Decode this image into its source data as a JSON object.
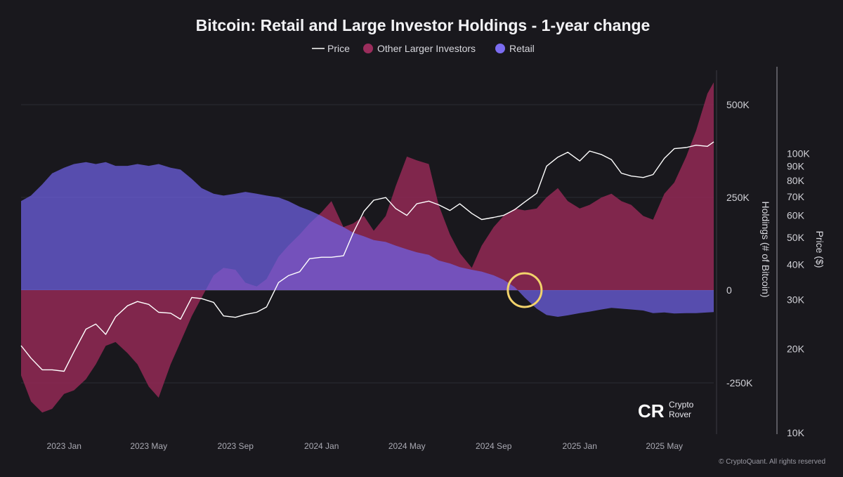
{
  "chart_data": {
    "type": "area",
    "title": "Bitcoin: Retail and Large Investor Holdings - 1-year change",
    "legend": [
      {
        "name": "Price",
        "color": "#ffffff",
        "marker": "line"
      },
      {
        "name": "Other Larger Investors",
        "color": "#9b2d5c",
        "marker": "dot"
      },
      {
        "name": "Retail",
        "color": "#7b6cf0",
        "marker": "dot"
      }
    ],
    "legend_position": "top-center",
    "y_left": {
      "label": "Holdings (# of Bitcoin)",
      "ticks": [
        500000,
        250000,
        0,
        -250000
      ],
      "tick_labels": [
        "500K",
        "250K",
        "0",
        "-250K"
      ],
      "range": [
        -390000,
        590000
      ]
    },
    "y_right": {
      "label": "Price ($)",
      "scale": "log",
      "ticks": [
        100000,
        90000,
        80000,
        70000,
        60000,
        50000,
        40000,
        30000,
        20000,
        10000
      ],
      "tick_labels": [
        "100K",
        "90K",
        "80K",
        "70K",
        "60K",
        "50K",
        "40K",
        "30K",
        "20K",
        "10K"
      ],
      "range": [
        10000,
        150000
      ]
    },
    "x_ticks": [
      "2023 Jan",
      "2023 May",
      "2023 Sep",
      "2024 Jan",
      "2024 May",
      "2024 Sep",
      "2025 Jan",
      "2025 May"
    ],
    "x_range": [
      "2022-11-01",
      "2025-07-10"
    ],
    "grid": "horizontal",
    "series": [
      {
        "name": "Retail",
        "color": "#6f63e6",
        "x": [
          "2022-11-01",
          "2022-11-15",
          "2022-12-01",
          "2022-12-15",
          "2023-01-01",
          "2023-01-15",
          "2023-02-01",
          "2023-02-15",
          "2023-03-01",
          "2023-03-15",
          "2023-04-01",
          "2023-04-15",
          "2023-05-01",
          "2023-05-15",
          "2023-06-01",
          "2023-06-15",
          "2023-07-01",
          "2023-07-15",
          "2023-08-01",
          "2023-08-15",
          "2023-09-01",
          "2023-09-15",
          "2023-10-01",
          "2023-10-15",
          "2023-11-01",
          "2023-11-15",
          "2023-12-01",
          "2023-12-15",
          "2024-01-01",
          "2024-01-15",
          "2024-02-01",
          "2024-02-15",
          "2024-03-01",
          "2024-03-15",
          "2024-04-01",
          "2024-04-15",
          "2024-05-01",
          "2024-05-15",
          "2024-06-01",
          "2024-06-15",
          "2024-07-01",
          "2024-07-15",
          "2024-08-01",
          "2024-08-15",
          "2024-09-01",
          "2024-09-15",
          "2024-10-01",
          "2024-10-15",
          "2024-11-01",
          "2024-11-15",
          "2024-12-01",
          "2024-12-15",
          "2025-01-01",
          "2025-01-15",
          "2025-02-01",
          "2025-02-15",
          "2025-03-01",
          "2025-03-15",
          "2025-04-01",
          "2025-04-15",
          "2025-05-01",
          "2025-05-15",
          "2025-06-01",
          "2025-06-15",
          "2025-07-01",
          "2025-07-10"
        ],
        "values": [
          240000,
          255000,
          285000,
          315000,
          330000,
          340000,
          345000,
          340000,
          345000,
          335000,
          335000,
          340000,
          335000,
          340000,
          330000,
          325000,
          300000,
          275000,
          260000,
          255000,
          260000,
          265000,
          260000,
          255000,
          250000,
          240000,
          225000,
          215000,
          200000,
          185000,
          170000,
          155000,
          145000,
          135000,
          130000,
          120000,
          110000,
          102000,
          95000,
          80000,
          72000,
          62000,
          55000,
          50000,
          40000,
          28000,
          8000,
          -20000,
          -50000,
          -67000,
          -72000,
          -68000,
          -62000,
          -58000,
          -52000,
          -48000,
          -50000,
          -52000,
          -55000,
          -62000,
          -60000,
          -63000,
          -62000,
          -62000,
          -60000,
          -59000
        ]
      },
      {
        "name": "Other Larger Investors",
        "color": "#8c2852",
        "x": [
          "2022-11-01",
          "2022-11-15",
          "2022-12-01",
          "2022-12-15",
          "2023-01-01",
          "2023-01-15",
          "2023-02-01",
          "2023-02-15",
          "2023-03-01",
          "2023-03-15",
          "2023-04-01",
          "2023-04-15",
          "2023-05-01",
          "2023-05-15",
          "2023-06-01",
          "2023-06-15",
          "2023-07-01",
          "2023-07-15",
          "2023-08-01",
          "2023-08-15",
          "2023-09-01",
          "2023-09-15",
          "2023-10-01",
          "2023-10-15",
          "2023-11-01",
          "2023-11-15",
          "2023-12-01",
          "2023-12-15",
          "2024-01-01",
          "2024-01-15",
          "2024-02-01",
          "2024-02-15",
          "2024-03-01",
          "2024-03-15",
          "2024-04-01",
          "2024-04-15",
          "2024-05-01",
          "2024-05-15",
          "2024-06-01",
          "2024-06-15",
          "2024-07-01",
          "2024-07-15",
          "2024-08-01",
          "2024-08-15",
          "2024-09-01",
          "2024-09-15",
          "2024-10-01",
          "2024-10-15",
          "2024-11-01",
          "2024-11-15",
          "2024-12-01",
          "2024-12-15",
          "2025-01-01",
          "2025-01-15",
          "2025-02-01",
          "2025-02-15",
          "2025-03-01",
          "2025-03-15",
          "2025-04-01",
          "2025-04-15",
          "2025-05-01",
          "2025-05-15",
          "2025-06-01",
          "2025-06-15",
          "2025-07-01",
          "2025-07-10"
        ],
        "values": [
          -230000,
          -300000,
          -330000,
          -320000,
          -280000,
          -270000,
          -240000,
          -200000,
          -150000,
          -140000,
          -170000,
          -200000,
          -260000,
          -290000,
          -200000,
          -140000,
          -70000,
          -20000,
          40000,
          60000,
          55000,
          20000,
          10000,
          30000,
          90000,
          120000,
          150000,
          180000,
          210000,
          240000,
          170000,
          180000,
          200000,
          160000,
          200000,
          280000,
          360000,
          350000,
          340000,
          230000,
          150000,
          100000,
          60000,
          120000,
          170000,
          200000,
          220000,
          215000,
          220000,
          250000,
          275000,
          240000,
          220000,
          230000,
          250000,
          260000,
          240000,
          230000,
          200000,
          190000,
          260000,
          290000,
          360000,
          430000,
          530000,
          560000
        ]
      },
      {
        "name": "Price",
        "color": "#ffffff",
        "x": [
          "2022-11-01",
          "2022-11-15",
          "2022-12-01",
          "2022-12-15",
          "2023-01-01",
          "2023-01-15",
          "2023-02-01",
          "2023-02-15",
          "2023-03-01",
          "2023-03-15",
          "2023-04-01",
          "2023-04-15",
          "2023-05-01",
          "2023-05-15",
          "2023-06-01",
          "2023-06-15",
          "2023-07-01",
          "2023-07-15",
          "2023-08-01",
          "2023-08-15",
          "2023-09-01",
          "2023-09-15",
          "2023-10-01",
          "2023-10-15",
          "2023-11-01",
          "2023-11-15",
          "2023-12-01",
          "2023-12-15",
          "2024-01-01",
          "2024-01-15",
          "2024-02-01",
          "2024-02-15",
          "2024-03-01",
          "2024-03-15",
          "2024-04-01",
          "2024-04-15",
          "2024-05-01",
          "2024-05-15",
          "2024-06-01",
          "2024-06-15",
          "2024-07-01",
          "2024-07-15",
          "2024-08-01",
          "2024-08-15",
          "2024-09-01",
          "2024-09-15",
          "2024-10-01",
          "2024-10-15",
          "2024-11-01",
          "2024-11-15",
          "2024-12-01",
          "2024-12-15",
          "2025-01-01",
          "2025-01-15",
          "2025-02-01",
          "2025-02-15",
          "2025-03-01",
          "2025-03-15",
          "2025-04-01",
          "2025-04-15",
          "2025-05-01",
          "2025-05-15",
          "2025-06-01",
          "2025-06-15",
          "2025-07-01",
          "2025-07-10"
        ],
        "values": [
          20500,
          18500,
          16800,
          16800,
          16600,
          19500,
          23500,
          24500,
          22500,
          26000,
          28500,
          29500,
          28800,
          27000,
          26800,
          25500,
          30500,
          30200,
          29300,
          26200,
          25900,
          26500,
          27000,
          28200,
          34500,
          36500,
          37700,
          42000,
          42500,
          42500,
          43000,
          52000,
          62000,
          68000,
          69500,
          63500,
          60000,
          66000,
          67500,
          65500,
          62500,
          66000,
          61000,
          58000,
          59000,
          60000,
          63000,
          67000,
          72000,
          90000,
          97000,
          101000,
          94000,
          102000,
          99000,
          95000,
          85000,
          83000,
          82000,
          84000,
          96000,
          104000,
          105000,
          107000,
          106000,
          110000
        ]
      }
    ],
    "annotation": {
      "type": "circle",
      "date": "2024-10-15",
      "value": 0,
      "color": "#f2d26b"
    }
  },
  "branding": {
    "logo_mark": "CR",
    "name_line1": "Crypto",
    "name_line2": "Rover"
  },
  "copyright": "© CryptoQuant. All rights reserved"
}
